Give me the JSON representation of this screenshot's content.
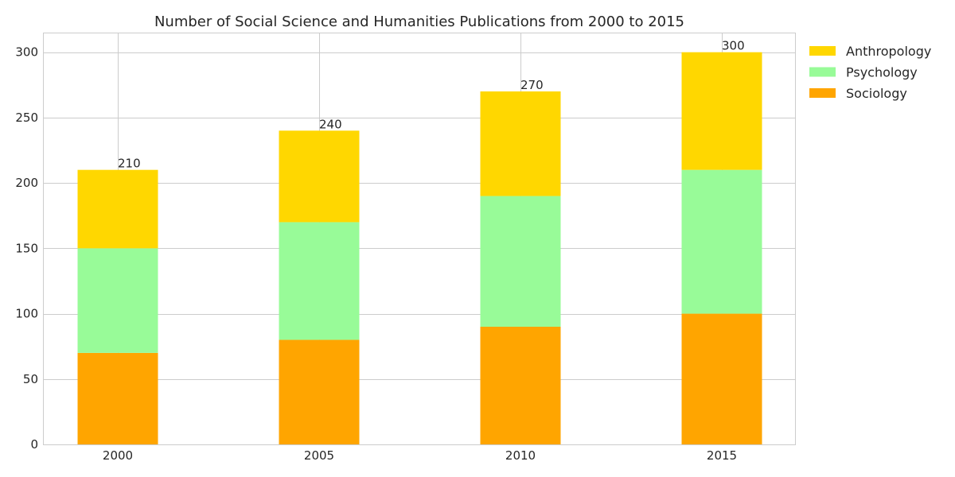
{
  "chart_data": {
    "type": "bar",
    "stacked": true,
    "title": "Number of Social Science and Humanities Publications from 2000 to 2015",
    "xlabel": "",
    "ylabel": "",
    "categories": [
      "2000",
      "2005",
      "2010",
      "2015"
    ],
    "ylim": [
      0,
      315
    ],
    "yticks": [
      0,
      50,
      100,
      150,
      200,
      250,
      300
    ],
    "grid": true,
    "legend_position": "outside-top-right",
    "series": [
      {
        "name": "Sociology",
        "values": [
          70,
          80,
          90,
          100
        ],
        "color": "#FFA500"
      },
      {
        "name": "Psychology",
        "values": [
          80,
          90,
          100,
          110
        ],
        "color": "#98FB98"
      },
      {
        "name": "Anthropology",
        "values": [
          60,
          70,
          80,
          90
        ],
        "color": "#FFD700"
      }
    ],
    "totals": [
      210,
      240,
      270,
      300
    ]
  }
}
